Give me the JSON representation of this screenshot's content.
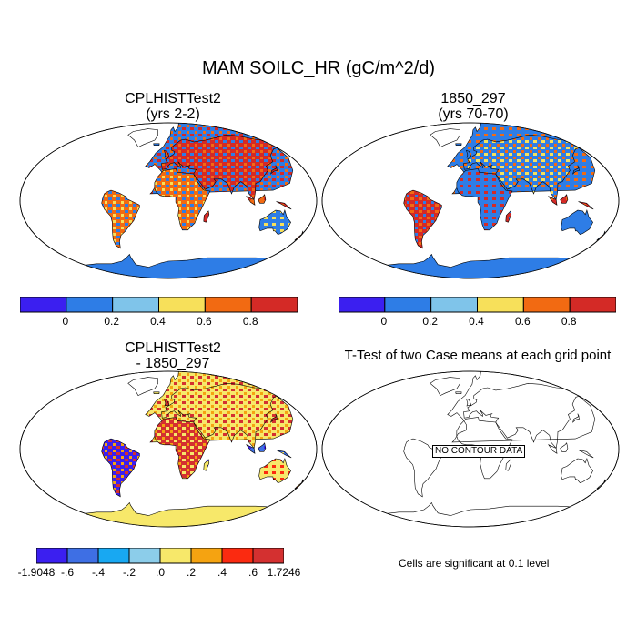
{
  "title": "MAM SOILC_HR (gC/m^2/d)",
  "panels": [
    {
      "title_line1": "CPLHISTTest2",
      "title_line2": "(yrs 2-2)",
      "style": "case1"
    },
    {
      "title_line1": "1850_297",
      "title_line2": "(yrs 70-70)",
      "style": "case2"
    },
    {
      "title_line1": "CPLHISTTest2",
      "title_line2": "- 1850_297",
      "style": "diff"
    },
    {
      "title_line1": "T-Test of two Case means at each grid point",
      "title_line2": "",
      "style": "outline"
    }
  ],
  "no_contour_label": "NO CONTOUR DATA",
  "significance_note": "Cells are significant at 0.1 level",
  "colorbar_top": {
    "colors": [
      "#3b1ff0",
      "#2e7de6",
      "#7fc4ea",
      "#f7e05a",
      "#f26a12",
      "#d42a26"
    ],
    "labels": [
      "0",
      "0.2",
      "0.4",
      "0.6",
      "0.8"
    ]
  },
  "colorbar_diff": {
    "colors": [
      "#3b1ff0",
      "#3e6fe4",
      "#18a8f2",
      "#8ccdea",
      "#f7e86a",
      "#f5a311",
      "#fb2a10",
      "#d43030"
    ],
    "labels": [
      "-1.9048",
      "-.6",
      "-.4",
      "-.2",
      ".0",
      ".2",
      ".4",
      ".6",
      "1.7246"
    ]
  },
  "colors": {
    "ocean": "#ffffff",
    "outline": "#000000"
  }
}
